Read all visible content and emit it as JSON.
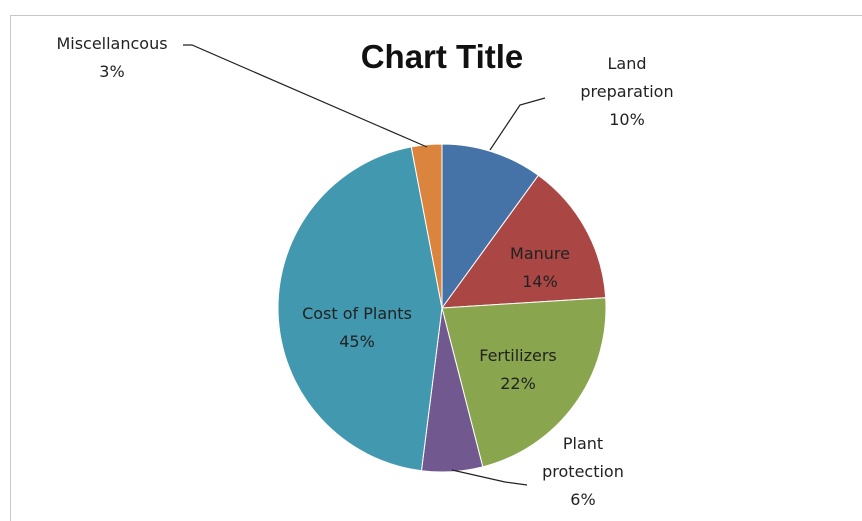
{
  "chart_data": {
    "type": "pie",
    "title": "Chart Title",
    "categories": [
      "Land preparation",
      "Manure",
      "Fertilizers",
      "Plant protection",
      "Cost of Plants",
      "Miscellancous"
    ],
    "values": [
      10,
      14,
      22,
      6,
      45,
      3
    ],
    "value_labels": [
      "10%",
      "14%",
      "22%",
      "6%",
      "45%",
      "3%"
    ],
    "colors": [
      "#4572a7",
      "#aa4643",
      "#89a54e",
      "#71588f",
      "#4198af",
      "#db843d"
    ]
  }
}
